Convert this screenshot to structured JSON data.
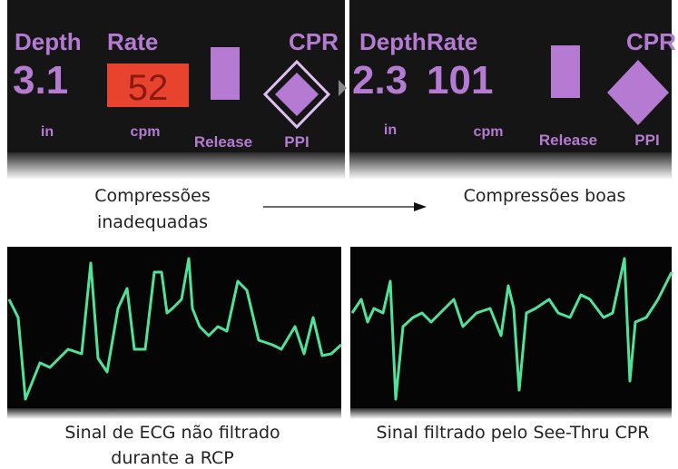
{
  "panels": [
    {
      "depth_label": "Depth",
      "depth_value": "3.1",
      "depth_unit": "in",
      "rate_label": "Rate",
      "rate_value": "52",
      "rate_unit": "cpm",
      "release_label": "Release",
      "cpr_label": "CPR",
      "ppi_label": "PPI",
      "caption_lines": [
        "Compressões",
        "inadequadas"
      ]
    },
    {
      "depth_label": "Depth",
      "depth_value": "2.3",
      "depth_unit": "in",
      "rate_label": "Rate",
      "rate_value": "101",
      "rate_unit": "cpm",
      "release_label": "Release",
      "cpr_label": "CPR",
      "ppi_label": "PPI",
      "caption_lines": [
        "Compressões boas"
      ]
    }
  ],
  "ecg": [
    {
      "caption_lines": [
        "Sinal de ECG não filtrado",
        "durante a RCP"
      ]
    },
    {
      "caption_lines": [
        "Sinal filtrado pelo See-Thru CPR"
      ]
    }
  ]
}
